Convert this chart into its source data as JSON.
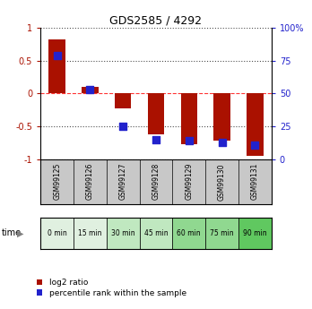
{
  "title": "GDS2585 / 4292",
  "samples": [
    "GSM99125",
    "GSM99126",
    "GSM99127",
    "GSM99128",
    "GSM99129",
    "GSM99130",
    "GSM99131"
  ],
  "times": [
    "0 min",
    "15 min",
    "30 min",
    "45 min",
    "60 min",
    "75 min",
    "90 min"
  ],
  "log2_ratio": [
    0.82,
    0.1,
    -0.22,
    -0.62,
    -0.77,
    -0.72,
    -0.95
  ],
  "percentile_rank_pct": [
    79,
    53,
    25,
    15,
    14,
    13,
    11
  ],
  "log2_color": "#aa1100",
  "percentile_color": "#2222cc",
  "bg_color": "#ffffff",
  "ylim_left": [
    -1,
    1
  ],
  "ylim_right": [
    0,
    100
  ],
  "yticks_left": [
    -1,
    -0.5,
    0,
    0.5,
    1
  ],
  "yticks_right": [
    0,
    25,
    50,
    75,
    100
  ],
  "time_colors": [
    "#e0f0e0",
    "#e0f0e0",
    "#c0e8c0",
    "#c0e8c0",
    "#90d890",
    "#90d890",
    "#60c860"
  ],
  "sample_bg": "#c8c8c8",
  "legend_labels": [
    "log2 ratio",
    "percentile rank within the sample"
  ],
  "bar_width": 0.5,
  "blue_marker_size": 40
}
